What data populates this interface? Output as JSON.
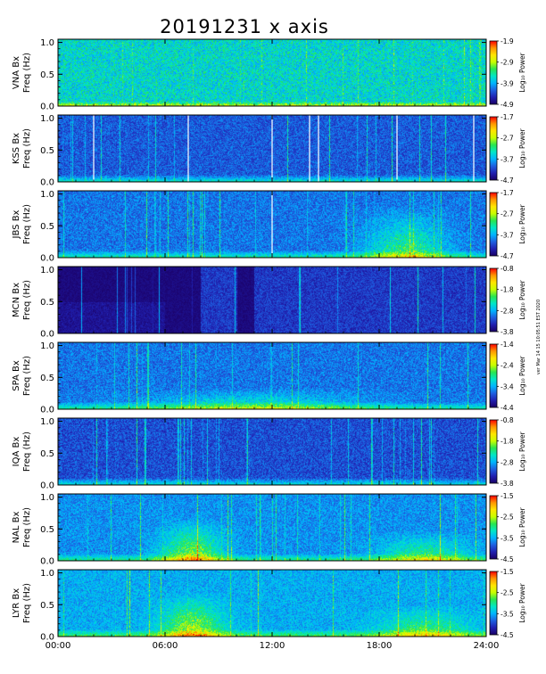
{
  "title": "20191231 x axis",
  "side_note": "ver Mar 14 15 10:05:51 EST 2020",
  "colors": {
    "background": "#ffffff",
    "colormap": [
      "#1a0066",
      "#2020b0",
      "#1e5fe0",
      "#00b4ff",
      "#00e6c8",
      "#28e650",
      "#c8ff00",
      "#ffe600",
      "#ff9600",
      "#ff0000"
    ]
  },
  "chart_data": {
    "type": "heatmap",
    "x_ticks": [
      "00:00",
      "06:00",
      "12:00",
      "18:00",
      "24:00"
    ],
    "xlim_hours": [
      0,
      24
    ],
    "y_ticks": [
      "0.0",
      "0.5",
      "1.0"
    ],
    "ylim_hz": [
      0,
      1.05
    ],
    "colorbar_label": "Log₁₀ Power",
    "panels": [
      {
        "station": "VNA",
        "ylabel1": "VNA Bx",
        "ylabel2": "Freq (Hz)",
        "cbar_ticks": [
          "-1.9",
          "-2.9",
          "-3.9",
          "-4.9"
        ],
        "clim": [
          -4.9,
          -1.9
        ],
        "style": "dense",
        "base": 0.33,
        "white_lines": []
      },
      {
        "station": "KSS",
        "ylabel1": "KSS Bx",
        "ylabel2": "Freq (Hz)",
        "cbar_ticks": [
          "-1.7",
          "-2.7",
          "-3.7",
          "-4.7"
        ],
        "clim": [
          -4.7,
          -1.7
        ],
        "style": "dark",
        "base": 0.12,
        "white_lines": [
          2.0,
          7.3,
          12.0,
          14.1,
          14.6,
          19.0,
          23.3
        ]
      },
      {
        "station": "JBS",
        "ylabel1": "JBS Bx",
        "ylabel2": "Freq (Hz)",
        "cbar_ticks": [
          "-1.7",
          "-2.7",
          "-3.7",
          "-4.7"
        ],
        "clim": [
          -4.7,
          -1.7
        ],
        "style": "dark",
        "base": 0.16,
        "white_lines": [
          12.0
        ]
      },
      {
        "station": "MCN",
        "ylabel1": "MCN Bx",
        "ylabel2": "Freq (Hz)",
        "cbar_ticks": [
          "-0.8",
          "-1.8",
          "-2.8",
          "-3.8"
        ],
        "clim": [
          -3.8,
          -0.8
        ],
        "style": "black",
        "base": 0.02,
        "white_lines": []
      },
      {
        "station": "SPA",
        "ylabel1": "SPA Bx",
        "ylabel2": "Freq (Hz)",
        "cbar_ticks": [
          "-1.4",
          "-2.4",
          "-3.4",
          "-4.4"
        ],
        "clim": [
          -4.4,
          -1.4
        ],
        "style": "dark",
        "base": 0.16,
        "white_lines": []
      },
      {
        "station": "IQA",
        "ylabel1": "IQA Bx",
        "ylabel2": "Freq (Hz)",
        "cbar_ticks": [
          "-0.8",
          "-1.8",
          "-2.8",
          "-3.8"
        ],
        "clim": [
          -3.8,
          -0.8
        ],
        "style": "dark",
        "base": 0.1,
        "white_lines": []
      },
      {
        "station": "NAL",
        "ylabel1": "NAL Bx",
        "ylabel2": "Freq (Hz)",
        "cbar_ticks": [
          "-1.5",
          "-2.5",
          "-3.5",
          "-4.5"
        ],
        "clim": [
          -4.5,
          -1.5
        ],
        "style": "mid",
        "base": 0.2,
        "white_lines": []
      },
      {
        "station": "LYR",
        "ylabel1": "LYR Bx",
        "ylabel2": "Freq (Hz)",
        "cbar_ticks": [
          "-1.5",
          "-2.5",
          "-3.5",
          "-4.5"
        ],
        "clim": [
          -4.5,
          -1.5
        ],
        "style": "mid",
        "base": 0.24,
        "white_lines": []
      }
    ]
  }
}
